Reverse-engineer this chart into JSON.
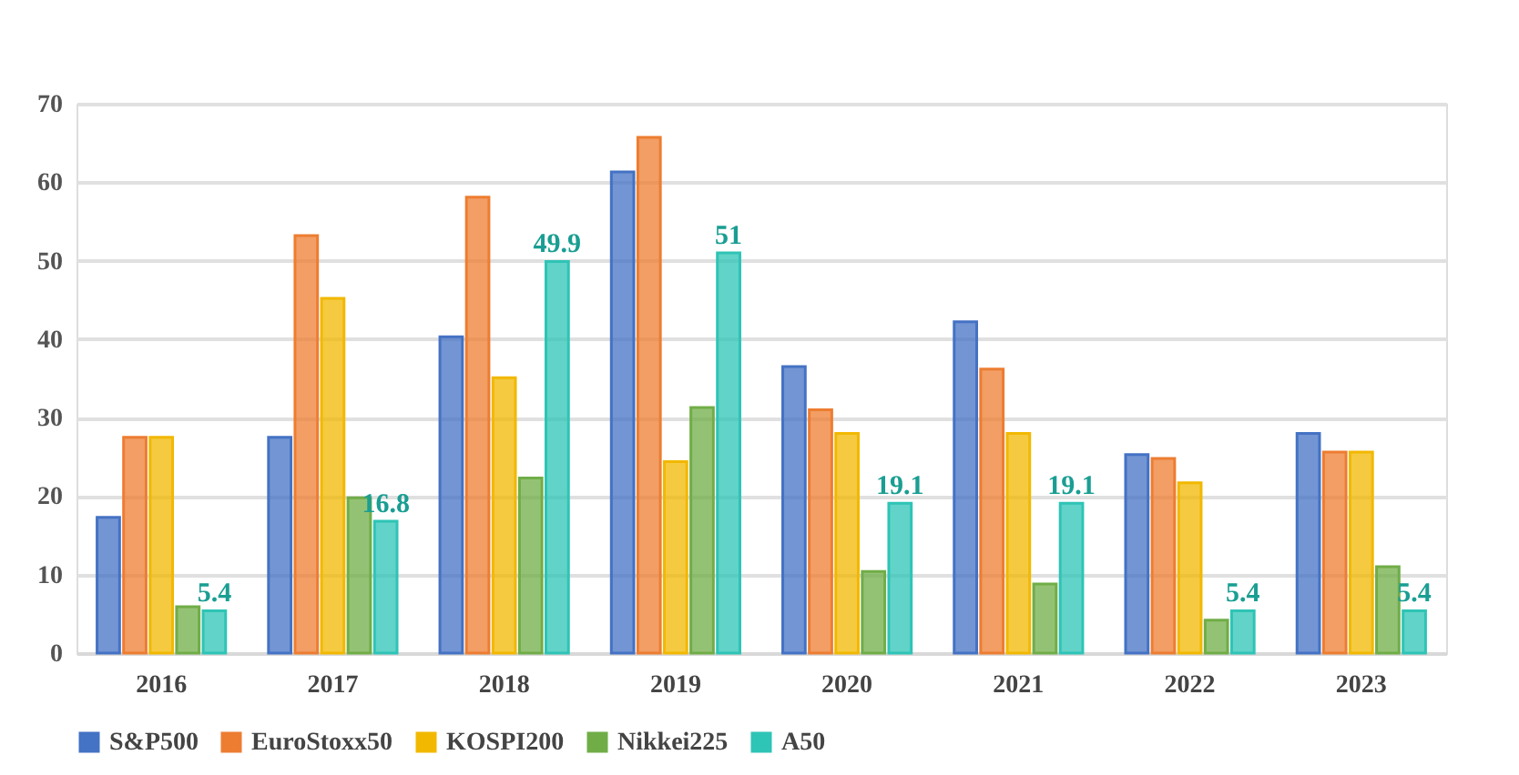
{
  "chart_data": {
    "type": "bar",
    "categories": [
      "2016",
      "2017",
      "2018",
      "2019",
      "2020",
      "2021",
      "2022",
      "2023"
    ],
    "series": [
      {
        "name": "S&P500",
        "color": "#4472c4",
        "values": [
          17.3,
          27.5,
          40.3,
          61.3,
          36.5,
          42.2,
          25.3,
          28.0
        ]
      },
      {
        "name": "EuroStoxx50",
        "color": "#ed7d31",
        "values": [
          27.5,
          53.2,
          58.1,
          65.7,
          31.0,
          36.2,
          24.8,
          25.6
        ]
      },
      {
        "name": "KOSPI200",
        "color": "#f2b800",
        "values": [
          27.5,
          45.2,
          35.1,
          24.4,
          28.0,
          28.0,
          21.7,
          25.6
        ]
      },
      {
        "name": "Nikkei225",
        "color": "#70ad47",
        "values": [
          5.9,
          19.8,
          22.3,
          31.3,
          10.4,
          8.8,
          4.2,
          11.0
        ]
      },
      {
        "name": "A50",
        "color": "#2ec4b6",
        "values": [
          5.4,
          16.8,
          49.9,
          51,
          19.1,
          19.1,
          5.4,
          5.4
        ],
        "value_labels": [
          "5.4",
          "16.8",
          "49.9",
          "51",
          "19.1",
          "19.1",
          "5.4",
          "5.4"
        ]
      }
    ],
    "ylim": [
      0,
      70
    ],
    "yticks": [
      0,
      10,
      20,
      30,
      40,
      50,
      60,
      70
    ],
    "grid": "y",
    "legend": "bottom"
  }
}
